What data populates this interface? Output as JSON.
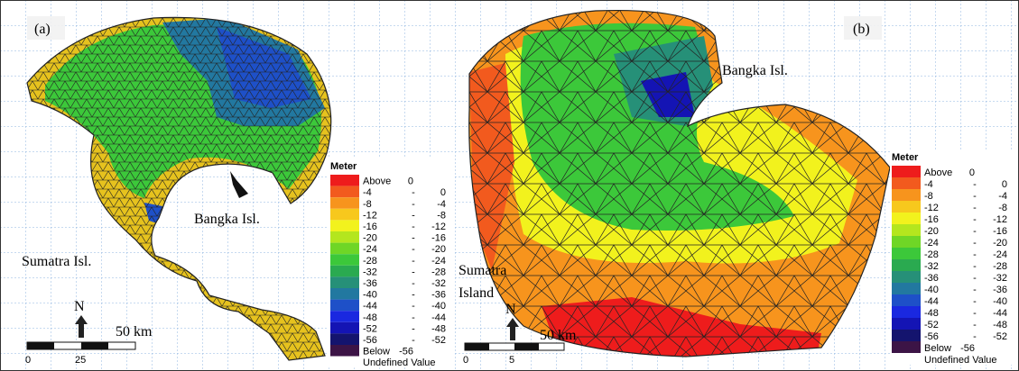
{
  "panels": [
    {
      "label": "(a)",
      "places": [
        "Sumatra Isl.",
        "Bangka Isl."
      ],
      "north": "N",
      "scale_label": "50 km",
      "scale_ticks": [
        "0",
        "25"
      ],
      "legend": {
        "title": "Meter",
        "rows": [
          {
            "name": "Above",
            "from": "0",
            "to": "",
            "color": "#ee1c1c"
          },
          {
            "name": "-4",
            "from": "-",
            "to": "0",
            "color": "#f25a1e"
          },
          {
            "name": "-8",
            "from": "-",
            "to": "-4",
            "color": "#f7941d"
          },
          {
            "name": "-12",
            "from": "-",
            "to": "-8",
            "color": "#f7c81d"
          },
          {
            "name": "-16",
            "from": "-",
            "to": "-12",
            "color": "#f2f21d"
          },
          {
            "name": "-20",
            "from": "-",
            "to": "-16",
            "color": "#b4e61e"
          },
          {
            "name": "-24",
            "from": "-",
            "to": "-20",
            "color": "#6fd626"
          },
          {
            "name": "-28",
            "from": "-",
            "to": "-24",
            "color": "#3cc83a"
          },
          {
            "name": "-32",
            "from": "-",
            "to": "-28",
            "color": "#2aaa50"
          },
          {
            "name": "-36",
            "from": "-",
            "to": "-32",
            "color": "#269078"
          },
          {
            "name": "-40",
            "from": "-",
            "to": "-36",
            "color": "#2278a0"
          },
          {
            "name": "-44",
            "from": "-",
            "to": "-40",
            "color": "#1e50c8"
          },
          {
            "name": "-48",
            "from": "-",
            "to": "-44",
            "color": "#1a28e0"
          },
          {
            "name": "-52",
            "from": "-",
            "to": "-48",
            "color": "#1414b4"
          },
          {
            "name": "-56",
            "from": "-",
            "to": "-52",
            "color": "#14146e"
          },
          {
            "name": "Below",
            "from": "-56",
            "to": "",
            "color": "#3c1446"
          },
          {
            "name": "Undefined Value",
            "from": "",
            "to": "",
            "color": "#ffffff"
          }
        ]
      }
    },
    {
      "label": "(b)",
      "places": [
        "Sumatra",
        "Island",
        "Bangka Isl."
      ],
      "north": "N",
      "scale_label": "50 km",
      "scale_ticks": [
        "0",
        "5"
      ],
      "legend": {
        "title": "Meter",
        "rows": [
          {
            "name": "Above",
            "from": "0",
            "to": "",
            "color": "#ee1c1c"
          },
          {
            "name": "-4",
            "from": "-",
            "to": "0",
            "color": "#f25a1e"
          },
          {
            "name": "-8",
            "from": "-",
            "to": "-4",
            "color": "#f7941d"
          },
          {
            "name": "-12",
            "from": "-",
            "to": "-8",
            "color": "#f7c81d"
          },
          {
            "name": "-16",
            "from": "-",
            "to": "-12",
            "color": "#f2f21d"
          },
          {
            "name": "-20",
            "from": "-",
            "to": "-16",
            "color": "#b4e61e"
          },
          {
            "name": "-24",
            "from": "-",
            "to": "-20",
            "color": "#6fd626"
          },
          {
            "name": "-28",
            "from": "-",
            "to": "-24",
            "color": "#3cc83a"
          },
          {
            "name": "-32",
            "from": "-",
            "to": "-28",
            "color": "#2aaa50"
          },
          {
            "name": "-36",
            "from": "-",
            "to": "-32",
            "color": "#269078"
          },
          {
            "name": "-40",
            "from": "-",
            "to": "-36",
            "color": "#2278a0"
          },
          {
            "name": "-44",
            "from": "-",
            "to": "-40",
            "color": "#1e50c8"
          },
          {
            "name": "-48",
            "from": "-",
            "to": "-44",
            "color": "#1a28e0"
          },
          {
            "name": "-52",
            "from": "-",
            "to": "-48",
            "color": "#1414b4"
          },
          {
            "name": "-56",
            "from": "-",
            "to": "-52",
            "color": "#14146e"
          },
          {
            "name": "Below",
            "from": "-56",
            "to": "",
            "color": "#3c1446"
          },
          {
            "name": "Undefined Value",
            "from": "",
            "to": "",
            "color": "#ffffff"
          }
        ]
      }
    }
  ]
}
